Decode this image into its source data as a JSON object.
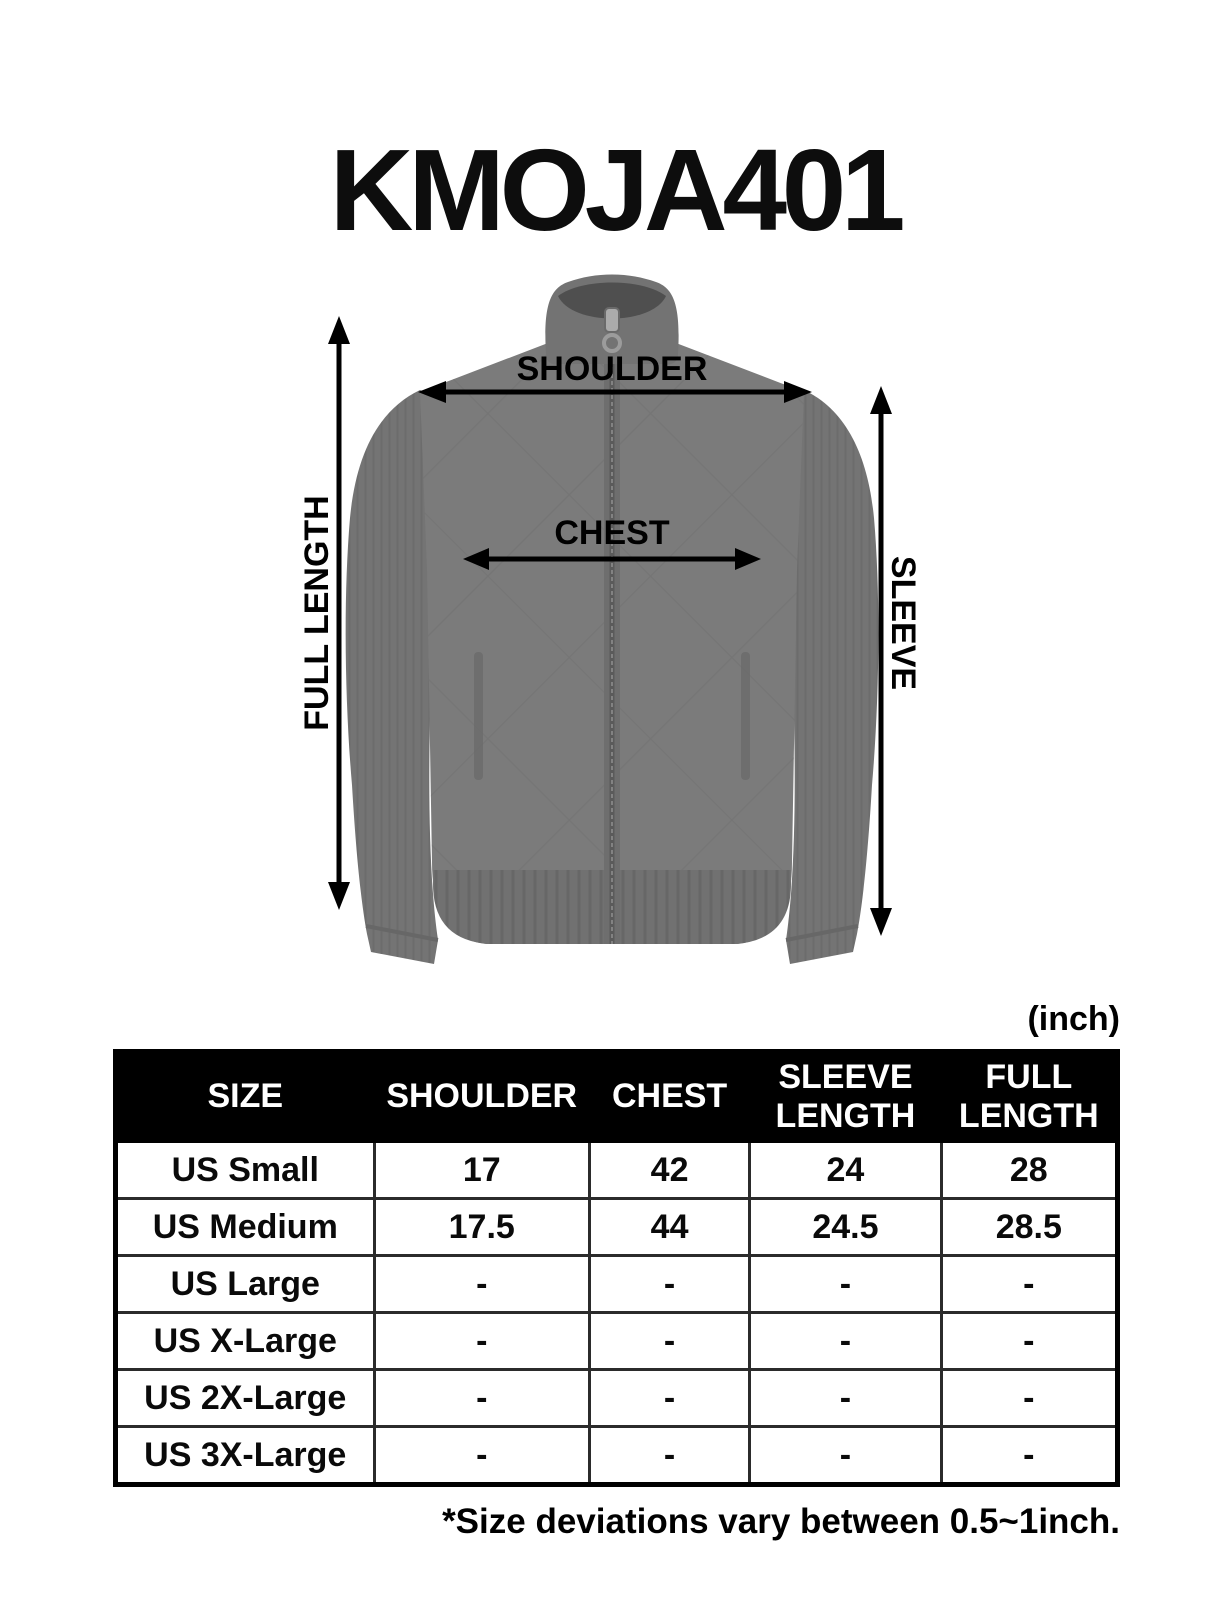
{
  "title": "KMOJA401",
  "unit_label": "(inch)",
  "diagram": {
    "shoulder_label": "SHOULDER",
    "chest_label": "CHEST",
    "full_length_label": "FULL LENGTH",
    "sleeve_label": "SLEEVE"
  },
  "table": {
    "columns": [
      "SIZE",
      "SHOULDER",
      "CHEST",
      "SLEEVE\nLENGTH",
      "FULL\nLENGTH"
    ],
    "rows": [
      [
        "US Small",
        "17",
        "42",
        "24",
        "28"
      ],
      [
        "US Medium",
        "17.5",
        "44",
        "24.5",
        "28.5"
      ],
      [
        "US Large",
        "-",
        "-",
        "-",
        "-"
      ],
      [
        "US X-Large",
        "-",
        "-",
        "-",
        "-"
      ],
      [
        "US 2X-Large",
        "-",
        "-",
        "-",
        "-"
      ],
      [
        "US 3X-Large",
        "-",
        "-",
        "-",
        "-"
      ]
    ]
  },
  "footnote": "*Size deviations vary between 0.5~1inch.",
  "colors": {
    "jacket_body": "#7b7b7b",
    "jacket_sleeve": "#747474",
    "jacket_trim": "#6f6f6f",
    "collar_inner": "#4f4f4f",
    "arrow_black": "#000000",
    "table_header_bg": "#000000",
    "table_header_text": "#ffffff"
  }
}
